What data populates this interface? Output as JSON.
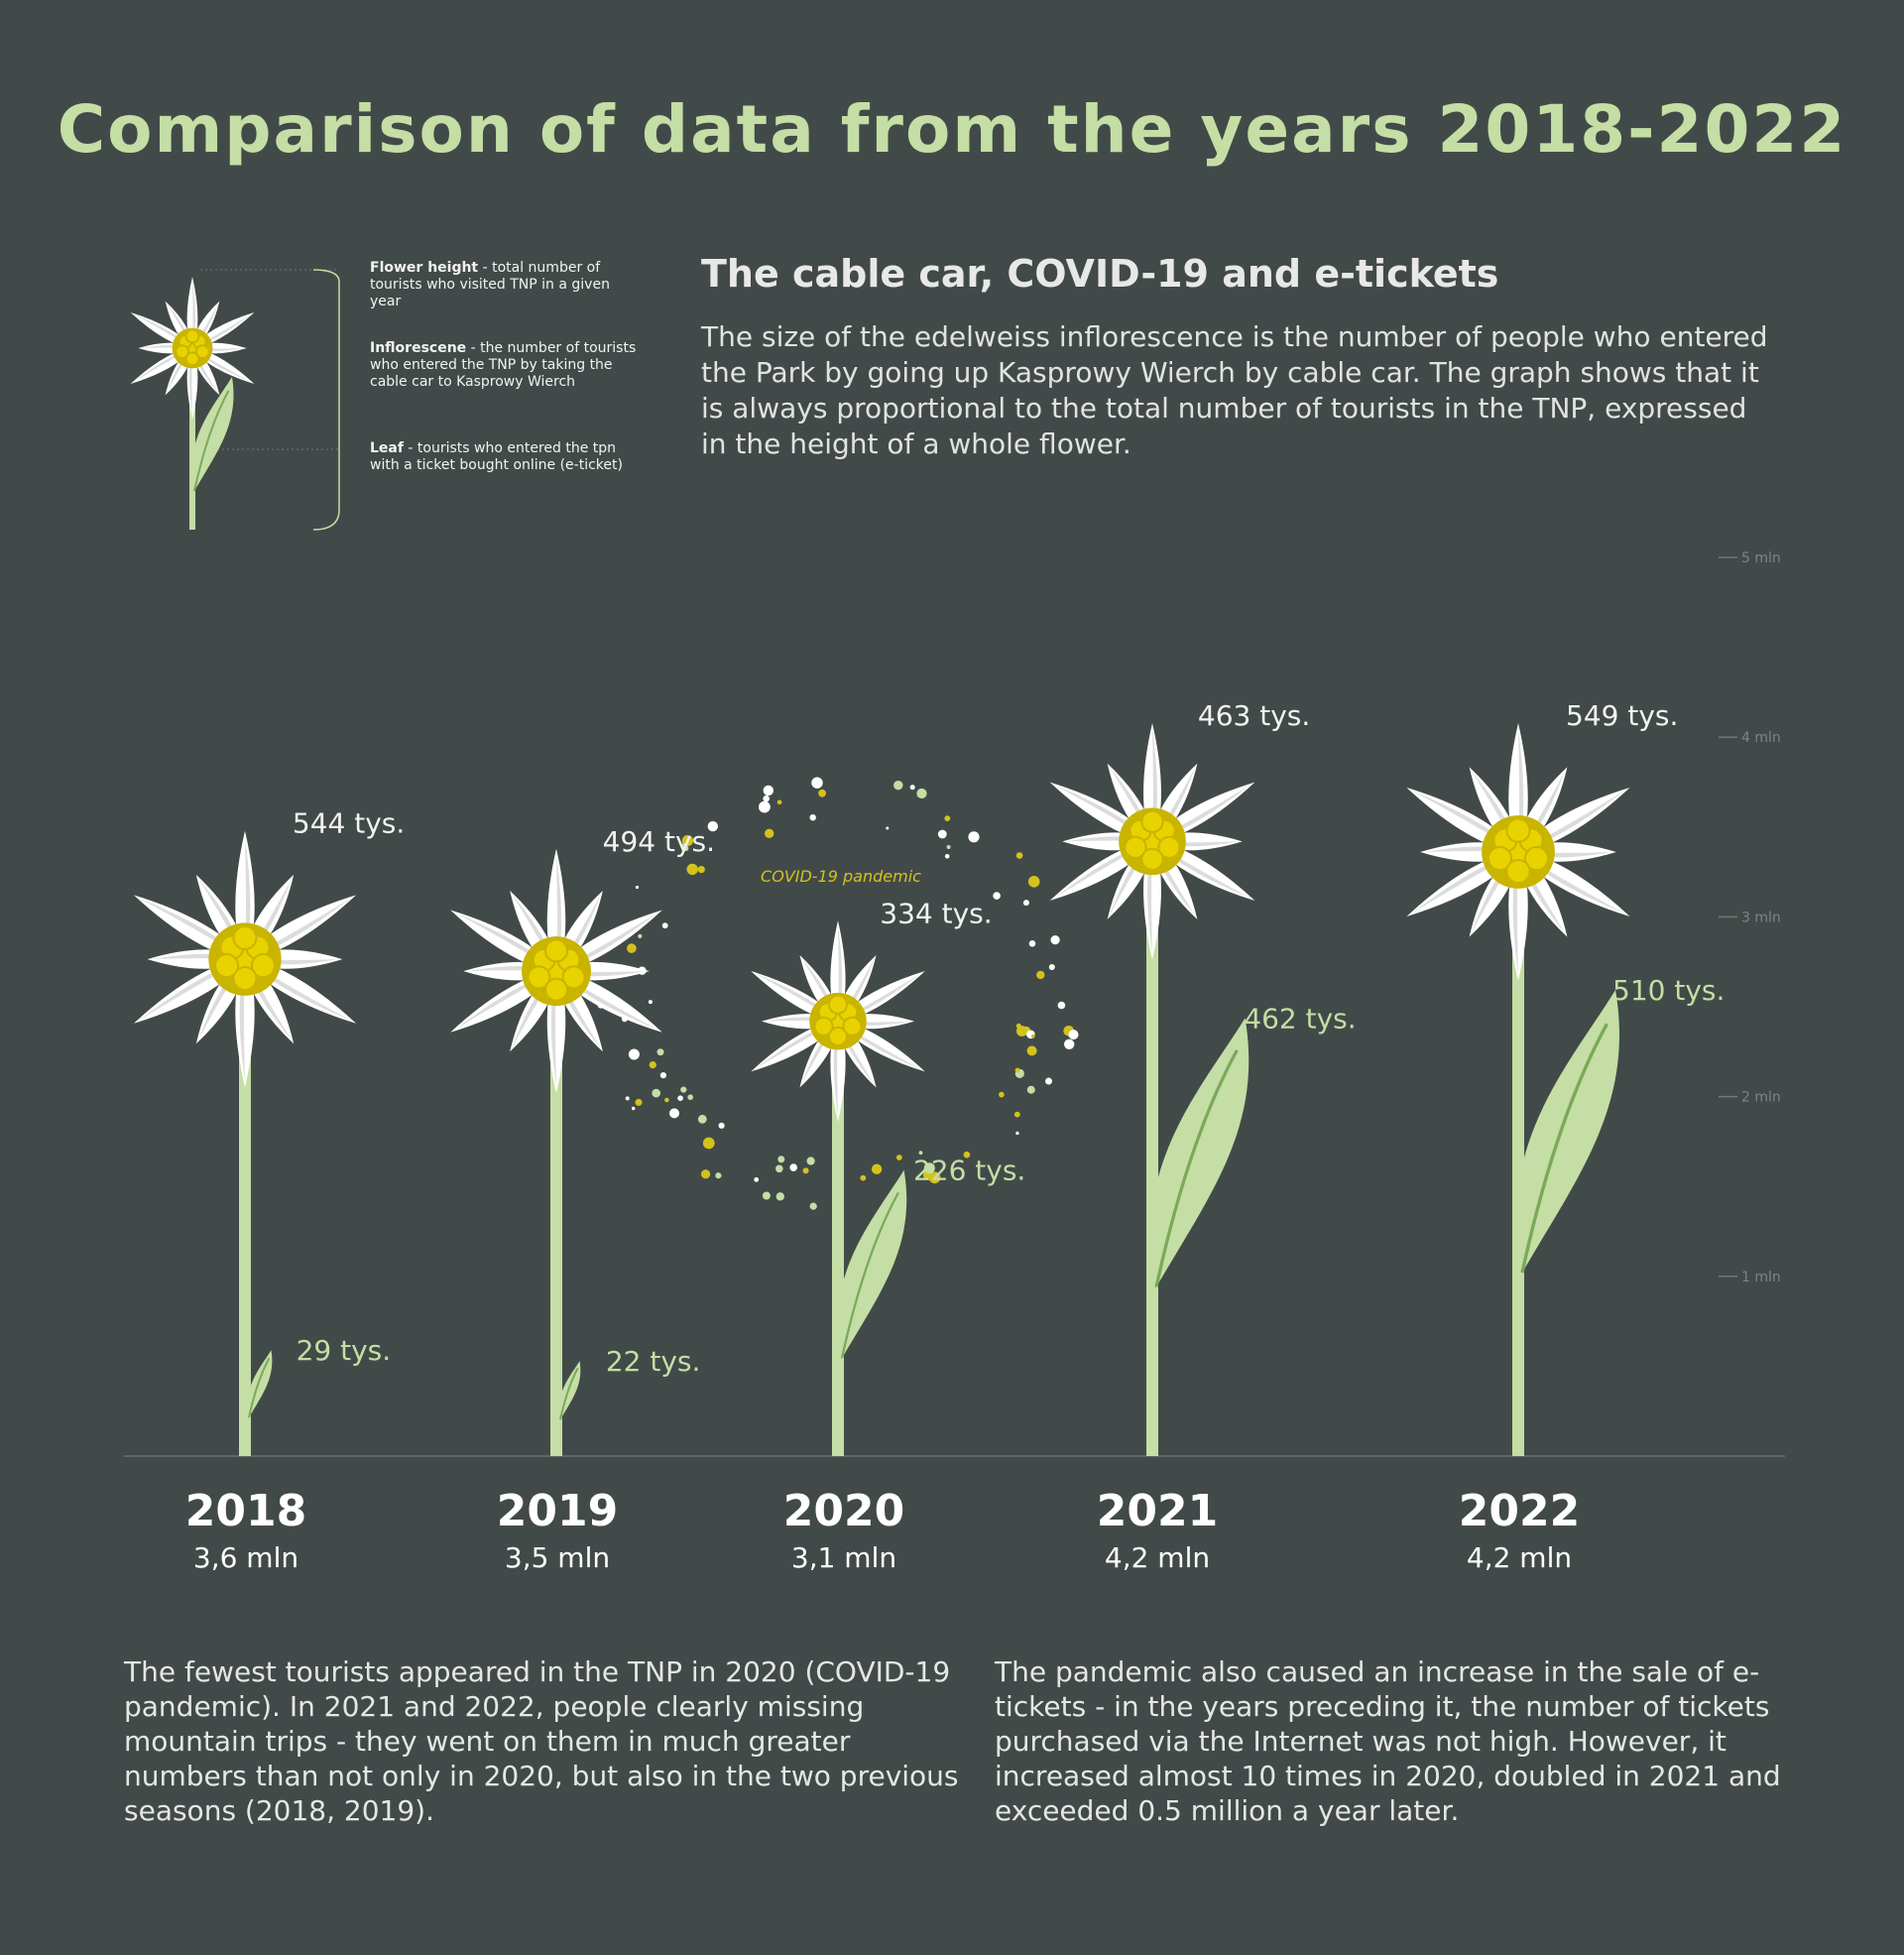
{
  "title": "Comparison of data from the years 2018-2022",
  "subtitle": "The cable car, COVID-19 and e-tickets",
  "intro": "The size of the edelweiss inflorescence is the number of people who entered the Park by going up Kasprowy Wierch by cable car. The graph shows that it is always proportional to the total number of tourists in the TNP, expressed in the height of a whole flower.",
  "legend": {
    "flower_height_term": "Flower height",
    "flower_height_desc": " - total number of tourists who visited TNP in a given year",
    "inflorescence_term": "Inflorescene",
    "inflorescence_desc": " - the number of tourists who entered the TNP by taking the cable car to Kasprowy Wierch",
    "leaf_term": "Leaf",
    "leaf_desc": " - tourists who entered the tpn with a ticket bought online (e-ticket)"
  },
  "colors": {
    "background": "#424a49",
    "title": "#c4dea5",
    "stem": "#c4dea5",
    "leaf": "#c4dea5",
    "leaf_vein": "#7aa95a",
    "petal": "#ffffff",
    "center": "#e8d200",
    "pandemic": "#d4c21c"
  },
  "chart_data": {
    "type": "bar",
    "categories": [
      "2018",
      "2019",
      "2020",
      "2021",
      "2022"
    ],
    "total_labels": [
      "3,6 mln",
      "3,5 mln",
      "3,1 mln",
      "4,2 mln",
      "4,2 mln"
    ],
    "series": [
      {
        "name": "Flower height",
        "unit": "mln",
        "values": [
          3.6,
          3.5,
          3.1,
          4.2,
          4.2
        ]
      },
      {
        "name": "Inflorescene",
        "unit": "tys.",
        "values": [
          544,
          494,
          334,
          463,
          549
        ],
        "labels": [
          "544 tys.",
          "494 tys.",
          "334 tys.",
          "463 tys.",
          "549 tys."
        ]
      },
      {
        "name": "Leaf",
        "unit": "tys.",
        "values": [
          29,
          22,
          226,
          462,
          510
        ],
        "labels": [
          "29 tys.",
          "22 tys.",
          "226 tys.",
          "462 tys.",
          "510 tys."
        ]
      }
    ],
    "y_axis": {
      "ticks": [
        1,
        2,
        3,
        4,
        5
      ],
      "tick_labels": [
        "1 mln",
        "2 mln",
        "3 mln",
        "4 mln",
        "5 mln"
      ],
      "ylim": [
        0,
        5
      ]
    },
    "annotation": {
      "label": "COVID-19 pandemic",
      "category": "2020"
    }
  },
  "notes": {
    "left": "The fewest tourists appeared in the TNP in 2020 (COVID-19 pandemic). In 2021 and 2022, people clearly missing mountain trips - they went on them in much greater numbers than not only in 2020, but also in the two previous seasons (2018, 2019).",
    "right": "The pandemic also caused an increase in the sale of e-tickets - in the years preceding it, the number of tickets purchased via the Internet was not high. However, it increased almost 10 times in 2020, doubled in 2021 and exceeded 0.5 million a year later."
  }
}
